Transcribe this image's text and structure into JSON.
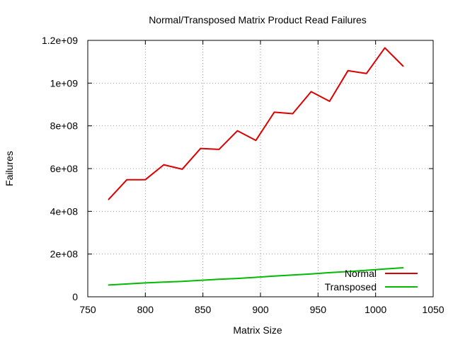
{
  "chart_data": {
    "type": "line",
    "title": "Normal/Transposed Matrix Product Read Failures",
    "xlabel": "Matrix Size",
    "ylabel": "Failures",
    "xlim": [
      750,
      1050
    ],
    "ylim": [
      0,
      1200000000
    ],
    "grid": true,
    "legend_position": "bottom-right",
    "x_ticks": [
      {
        "value": 750,
        "label": "750"
      },
      {
        "value": 800,
        "label": "800"
      },
      {
        "value": 850,
        "label": "850"
      },
      {
        "value": 900,
        "label": "900"
      },
      {
        "value": 950,
        "label": "950"
      },
      {
        "value": 1000,
        "label": "1000"
      },
      {
        "value": 1050,
        "label": "1050"
      }
    ],
    "y_ticks": [
      {
        "value": 0,
        "label": "0"
      },
      {
        "value": 200000000,
        "label": "2e+08"
      },
      {
        "value": 400000000,
        "label": "4e+08"
      },
      {
        "value": 600000000,
        "label": "6e+08"
      },
      {
        "value": 800000000,
        "label": "8e+08"
      },
      {
        "value": 1000000000,
        "label": "1e+09"
      },
      {
        "value": 1200000000,
        "label": "1.2e+09"
      }
    ],
    "x": [
      768,
      784,
      800,
      816,
      832,
      848,
      864,
      880,
      896,
      912,
      928,
      944,
      960,
      976,
      992,
      1008,
      1024
    ],
    "series": [
      {
        "name": "Normal",
        "color": "#dd0000",
        "values": [
          455000000,
          548000000,
          548000000,
          618000000,
          597000000,
          694000000,
          690000000,
          777000000,
          732000000,
          864000000,
          857000000,
          960000000,
          915000000,
          1058000000,
          1045000000,
          1165000000,
          1079000000
        ]
      },
      {
        "name": "Transposed",
        "color": "#00bb00",
        "values": [
          55000000,
          60000000,
          65000000,
          69000000,
          72000000,
          77000000,
          82000000,
          86000000,
          91000000,
          97000000,
          102000000,
          107000000,
          113000000,
          118000000,
          124000000,
          130000000,
          136000000
        ]
      }
    ]
  }
}
